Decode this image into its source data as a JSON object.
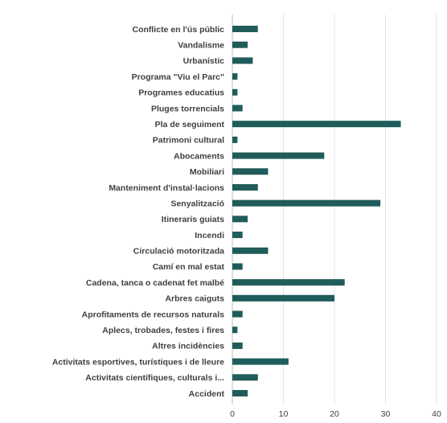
{
  "chart_data": {
    "type": "bar",
    "orientation": "horizontal",
    "title": "",
    "xlabel": "",
    "ylabel": "",
    "xlim": [
      0,
      40
    ],
    "xticks": [
      0,
      10,
      20,
      30,
      40
    ],
    "grid": true,
    "legend": "none",
    "bar_color": "#1f5c5a",
    "categories": [
      "Conflicte en l'ús públic",
      "Vandalisme",
      "Urbanístic",
      "Programa \"Viu el Parc\"",
      "Programes educatius",
      "Pluges torrencials",
      "Pla de seguiment",
      "Patrimoni cultural",
      "Abocaments",
      "Mobiliari",
      "Manteniment d'instal·lacions",
      "Senyalització",
      "Itineraris guiats",
      "Incendi",
      "Circulació motoritzada",
      "Camí en mal estat",
      "Cadena, tanca o cadenat fet malbé",
      "Arbres caiguts",
      "Aprofitaments de recursos naturals",
      "Aplecs, trobades, festes i fires",
      "Altres incidències",
      "Activitats esportives, turístiques i de lleure",
      "Activitats científiques, culturals i...",
      "Accident"
    ],
    "values": [
      5,
      3,
      4,
      1,
      1,
      2,
      33,
      1,
      18,
      7,
      5,
      29,
      3,
      2,
      7,
      2,
      22,
      20,
      2,
      1,
      2,
      11,
      5,
      3
    ]
  }
}
